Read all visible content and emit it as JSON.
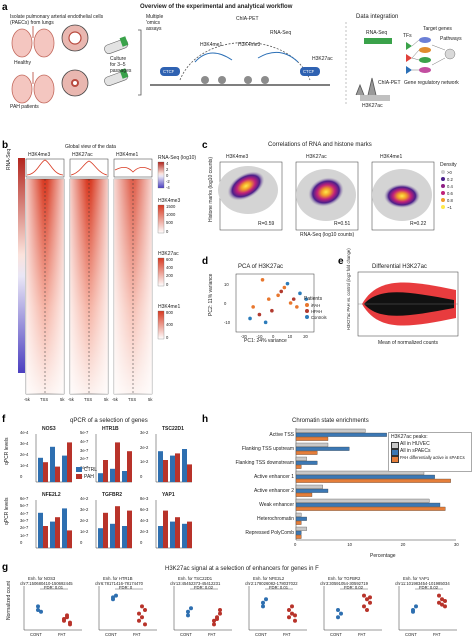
{
  "panel_a": {
    "letter": "a",
    "title": "Overview of the experimental and analytical workflow",
    "intro": [
      "Isolate pulmonary arterial endothelial cells",
      "(PAECs) from lungs"
    ],
    "healthy": "Healthy",
    "pah": "PAH patients",
    "culture": [
      "Culture",
      "for 3–5",
      "passages"
    ],
    "omics": [
      "Multiple",
      "'omics",
      "assays"
    ],
    "chiapet": "ChIA-PET",
    "rnaseq": "RNA-Seq",
    "marks": [
      "H3K4me1",
      "H3K4me3",
      "H3K27ac"
    ],
    "ctcf": "CTCF",
    "integration": "Data integration",
    "rnaseq2": "RNA-Seq",
    "chiapet2": "ChIA-PET",
    "h3k27ac2": "H3K27ac",
    "tfs": "TFs",
    "target_genes": "Target genes",
    "pathways": "Pathways",
    "grn": "Gene regulatory network"
  },
  "panel_b": {
    "letter": "b",
    "title": "Global view of the data",
    "rna_label": "RNA-Seq",
    "cols": [
      "H3K4me3",
      "H3K27ac",
      "H3K4me1"
    ],
    "xticks": [
      "-5k",
      "TSS",
      "5k"
    ],
    "legend_rna_title": "RNA-Seq (log10)",
    "legend_rna_ticks": [
      "4",
      "2",
      "0",
      "-2",
      "-4"
    ],
    "legends": [
      {
        "title": "H3K4me3",
        "ticks": [
          "1500",
          "1000",
          "500",
          "0"
        ]
      },
      {
        "title": "H3K27ac",
        "ticks": [
          "600",
          "400",
          "200",
          "0"
        ]
      },
      {
        "title": "H3K4me1",
        "ticks": [
          "800",
          "400",
          "0"
        ]
      }
    ],
    "colors": {
      "high": "#d83a22",
      "low": "#ffffff",
      "rna_high": "#c0392b",
      "rna_low": "#5b4fc7"
    }
  },
  "panel_c": {
    "letter": "c",
    "title": "Correlations of RNA and histone marks",
    "ylabel": "Histone marks (log10 counts)",
    "xlabel": "RNA-Seq (log10 counts)",
    "plots": [
      {
        "name": "H3K4me3",
        "r": "R=0.59"
      },
      {
        "name": "H3K27ac",
        "r": "R=0.51"
      },
      {
        "name": "H3K4me1",
        "r": "R=0.22"
      }
    ],
    "density_title": "Density",
    "density_levels": [
      ">0",
      "0.2",
      "0.4",
      "0.6",
      "0.8",
      "~1"
    ]
  },
  "panel_d": {
    "letter": "d",
    "title": "PCA of H3K27ac",
    "xlabel": "PC1: 24% variance",
    "ylabel": "PC2: 11% variance",
    "xticks": [
      "-20",
      "-10",
      "0",
      "10",
      "20"
    ],
    "yticks": [
      "10",
      "0",
      "-10"
    ],
    "legend_title": "Patients",
    "legend": [
      "iPAH",
      "HPAH",
      "Controls"
    ],
    "chart_data": {
      "type": "scatter",
      "title": "PCA of H3K27ac",
      "xlabel": "PC1: 24% variance",
      "ylabel": "PC2: 11% variance",
      "series": [
        {
          "name": "iPAH",
          "color": "#e8772e",
          "points": [
            [
              -8,
              12
            ],
            [
              2,
              4
            ],
            [
              6,
              8
            ],
            [
              -4,
              2
            ],
            [
              14,
              -2
            ],
            [
              10,
              0
            ],
            [
              -14,
              -2
            ]
          ]
        },
        {
          "name": "HPAH",
          "color": "#b23a2f",
          "points": [
            [
              -2,
              -4
            ],
            [
              4,
              6
            ],
            [
              12,
              2
            ],
            [
              -10,
              -6
            ]
          ]
        },
        {
          "name": "Controls",
          "color": "#2b7bba",
          "points": [
            [
              -16,
              -8
            ],
            [
              16,
              5
            ],
            [
              -6,
              -10
            ],
            [
              20,
              2
            ],
            [
              8,
              10
            ]
          ]
        }
      ]
    }
  },
  "panel_e": {
    "letter": "e",
    "title": "Differential H3K27ac",
    "ylabel": "H3K27ac PAH vs. control (log2 fold change)",
    "xlabel": "Mean of normalized counts"
  },
  "panel_f": {
    "letter": "f",
    "title": "qPCR of a selection of genes",
    "ylabel": "qPCR levels",
    "legend": [
      "CTRL",
      "PAH"
    ],
    "colors": {
      "ctrl": "#2e6fb0",
      "pah": "#b8332a"
    },
    "genes": [
      {
        "name": "NOS3",
        "ticks": [
          "4e-4",
          "3e-4",
          "2e-4",
          "1e-4",
          "0"
        ],
        "ctrl": [
          0.55,
          0.8,
          0.6
        ],
        "pah": [
          0.45,
          0.35,
          0.9
        ]
      },
      {
        "name": "HTR1B",
        "ticks": [
          "5e-7",
          "4e-7",
          "3e-7",
          "2e-7",
          "1e-7",
          "0"
        ],
        "ctrl": [
          0.2,
          0.3,
          0.25
        ],
        "pah": [
          0.5,
          0.9,
          0.7
        ]
      },
      {
        "name": "TSC22D1",
        "ticks": [
          "3e-2",
          "2e-2",
          "1e-2",
          "0"
        ],
        "ctrl": [
          0.7,
          0.6,
          0.75
        ],
        "pah": [
          0.5,
          0.65,
          0.4
        ]
      },
      {
        "name": "NFE2L2",
        "ticks": [
          "6e-7",
          "5e-7",
          "4e-7",
          "3e-7",
          "2e-7",
          "1e-7",
          "0"
        ],
        "ctrl": [
          0.8,
          0.6,
          0.9
        ],
        "pah": [
          0.5,
          0.7,
          0.4
        ]
      },
      {
        "name": "TGFBR2",
        "ticks": [
          "4e-2",
          "3e-2",
          "2e-2",
          "1e-2",
          "0"
        ],
        "ctrl": [
          0.45,
          0.55,
          0.5
        ],
        "pah": [
          0.8,
          0.95,
          0.85
        ]
      },
      {
        "name": "YAP1",
        "ticks": [
          "8e-3",
          "6e-3",
          "4e-3",
          "2e-3",
          "0"
        ],
        "ctrl": [
          0.5,
          0.6,
          0.55
        ],
        "pah": [
          0.85,
          0.7,
          0.6
        ]
      }
    ]
  },
  "panel_h": {
    "letter": "h",
    "title": "Chromatin state enrichments",
    "legend_title": "H3K27ac peaks:",
    "legend": [
      "All in HUVEC",
      "All in sPAECs",
      "PAH differentially active in sPAECs"
    ],
    "colors": [
      "#c8c8c8",
      "#3c78b4",
      "#e57e3a"
    ],
    "xlabel": "Percentage",
    "xticks": [
      "0",
      "10",
      "20",
      "30"
    ],
    "chart_data": {
      "type": "bar",
      "title": "Chromatin state enrichments",
      "xlabel": "Percentage",
      "xlim": [
        0,
        30
      ],
      "categories": [
        "Active TSS",
        "Flanking TSS upstream",
        "Flanking TSS downstream",
        "Active enhancer 1",
        "Active enhancer 2",
        "Weak enhancer",
        "Heterochromatin",
        "Repressed PolyComb"
      ],
      "series": [
        {
          "name": "All in HUVEC",
          "values": [
            13,
            6,
            2,
            24,
            5,
            25,
            1,
            2
          ]
        },
        {
          "name": "All in sPAECs",
          "values": [
            17,
            10,
            4,
            26,
            6,
            27,
            2,
            1
          ]
        },
        {
          "name": "PAH differentially active in sPAECs",
          "values": [
            6,
            4,
            1,
            29,
            3,
            28,
            1,
            1
          ]
        }
      ]
    }
  },
  "panel_g": {
    "letter": "g",
    "title": "H3K27ac signal at a selection of enhancers for genes in F",
    "ylabel": "Normalized count",
    "xlabels": [
      "CONT",
      "PAT"
    ],
    "plots": [
      {
        "title": [
          "Enh. for NOS3",
          "chr7:150680410-150692445"
        ],
        "fdr": "FDR: 0.01",
        "cont": [
          0.6,
          0.45,
          0.5
        ],
        "pat": [
          0.2,
          0.3,
          0.15,
          0.25,
          0.35,
          0.1
        ]
      },
      {
        "title": [
          "Enh. for HTR1B",
          "chr6:78171416-78174470"
        ],
        "fdr": "FDR: 0",
        "cont": [
          0.85,
          0.9,
          0.8
        ],
        "pat": [
          0.2,
          0.3,
          0.5,
          0.4,
          0.6,
          0.1
        ]
      },
      {
        "title": [
          "Enh. for TSC22D1",
          "chr13:45452373-45412231"
        ],
        "fdr": "FDR: 0.02",
        "cont": [
          0.35,
          0.55,
          0.45
        ],
        "pat": [
          0.2,
          0.3,
          0.4,
          0.1,
          0.25,
          0.5
        ]
      },
      {
        "title": [
          "Enh. for NFE2L2",
          "chr2:178026082-178037022"
        ],
        "fdr": "FDR: 0.01",
        "cont": [
          0.6,
          0.8,
          0.7
        ],
        "pat": [
          0.3,
          0.4,
          0.2,
          0.5,
          0.6,
          0.35
        ]
      },
      {
        "title": [
          "Enh. for TGFBR2",
          "chr3:30591054-30592719"
        ],
        "fdr": "FDR: 0.02",
        "cont": [
          0.3,
          0.4,
          0.5
        ],
        "pat": [
          0.6,
          0.8,
          0.7,
          0.9,
          0.5,
          0.85
        ]
      },
      {
        "title": [
          "Enh. for YAP1",
          "chr11:101983454-101985034"
        ],
        "fdr": "FDR: 0.02",
        "cont": [
          0.5,
          0.6,
          0.45
        ],
        "pat": [
          0.7,
          0.8,
          0.6,
          0.9,
          0.65,
          0.75
        ]
      }
    ]
  }
}
